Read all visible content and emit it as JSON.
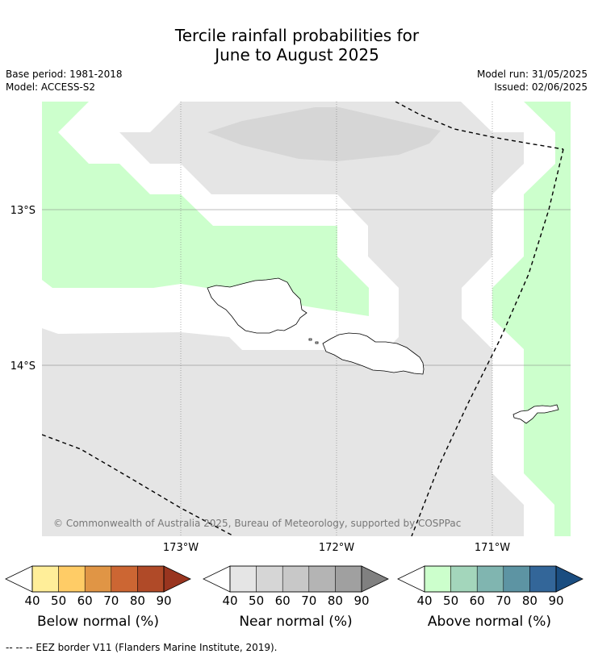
{
  "title": {
    "line1": "Tercile rainfall probabilities for",
    "line2": "June to August 2025"
  },
  "meta": {
    "base_period": "Base period: 1981-2018",
    "model": "Model: ACCESS-S2",
    "model_run": "Model run: 31/05/2025",
    "issued": "Issued: 02/06/2025"
  },
  "map": {
    "region": "Samoa",
    "lon_range": [
      -173.9,
      -170.5
    ],
    "lat_range": [
      -15.1,
      -12.3
    ],
    "lat_ticks": [
      {
        "value": -13,
        "label": "13°S"
      },
      {
        "value": -14,
        "label": "14°S"
      }
    ],
    "lon_ticks": [
      {
        "value": -173,
        "label": "173°W"
      },
      {
        "value": -172,
        "label": "172°W"
      },
      {
        "value": -171,
        "label": "171°W"
      }
    ],
    "copyright": "© Commonwealth of Australia 2025, Bureau of Meteorology, supported by COSPPac",
    "colors": {
      "near_40_50": "#e5e5e5",
      "near_50_60": "#d6d6d6",
      "above_40_50": "#ccffcc",
      "eez_border": "#000000"
    }
  },
  "colorbars": [
    {
      "name": "below",
      "title": "Below normal (%)",
      "colors": [
        "#ffee99",
        "#ffcc66",
        "#e09545",
        "#cc6633",
        "#b04a28",
        "#99351f"
      ],
      "ticks": [
        "40",
        "50",
        "60",
        "70",
        "80",
        "90"
      ]
    },
    {
      "name": "near",
      "title": "Near normal (%)",
      "colors": [
        "#e5e5e5",
        "#d6d6d6",
        "#c8c8c8",
        "#b4b4b4",
        "#a0a0a0",
        "#808080"
      ],
      "ticks": [
        "40",
        "50",
        "60",
        "70",
        "80",
        "90"
      ]
    },
    {
      "name": "above",
      "title": "Above normal (%)",
      "colors": [
        "#ccffcc",
        "#a3d6bb",
        "#80b5b0",
        "#5d94a3",
        "#336699",
        "#1a4d80"
      ],
      "ticks": [
        "40",
        "50",
        "60",
        "70",
        "80",
        "90"
      ]
    }
  ],
  "footnote": "--  --  -- EEZ border V11 (Flanders Marine Institute, 2019)."
}
